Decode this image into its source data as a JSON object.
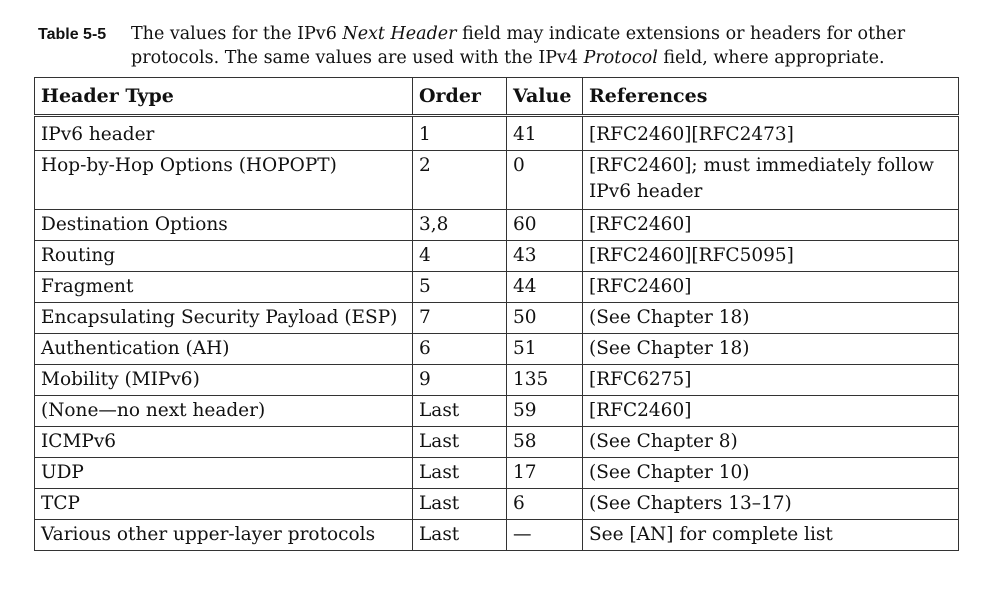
{
  "caption": {
    "label": "Table 5-5",
    "text_part1": "The values for the IPv6 ",
    "text_italic1": "Next Header",
    "text_part2": " field may indicate extensions or headers for other protocols. The same values are used with the IPv4 ",
    "text_italic2": "Protocol",
    "text_part3": " field, where appropriate."
  },
  "table": {
    "headers": [
      "Header Type",
      "Order",
      "Value",
      "References"
    ],
    "rows": [
      {
        "type": "IPv6 header",
        "order": "1",
        "value": "41",
        "refs": "[RFC2460][RFC2473]"
      },
      {
        "type": "Hop-by-Hop Options (HOPOPT)",
        "order": "2",
        "value": "0",
        "refs": "[RFC2460]; must immediately follow IPv6 header"
      },
      {
        "type": "Destination Options",
        "order": "3,8",
        "value": "60",
        "refs": "[RFC2460]"
      },
      {
        "type": "Routing",
        "order": "4",
        "value": "43",
        "refs": "[RFC2460][RFC5095]"
      },
      {
        "type": "Fragment",
        "order": "5",
        "value": "44",
        "refs": "[RFC2460]"
      },
      {
        "type": "Encapsulating Security Payload (ESP)",
        "order": "7",
        "value": "50",
        "refs": "(See Chapter 18)"
      },
      {
        "type": "Authentication (AH)",
        "order": "6",
        "value": "51",
        "refs": "(See Chapter 18)"
      },
      {
        "type": "Mobility (MIPv6)",
        "order": "9",
        "value": "135",
        "refs": "[RFC6275]"
      },
      {
        "type": "(None—no next header)",
        "order": "Last",
        "value": "59",
        "refs": "[RFC2460]"
      },
      {
        "type": "ICMPv6",
        "order": "Last",
        "value": "58",
        "refs": "(See Chapter 8)"
      },
      {
        "type": "UDP",
        "order": "Last",
        "value": "17",
        "refs": "(See Chapter 10)"
      },
      {
        "type": "TCP",
        "order": "Last",
        "value": "6",
        "refs": "(See Chapters 13–17)"
      },
      {
        "type": "Various other upper-layer protocols",
        "order": "Last",
        "value": "—",
        "refs": "See [AN] for complete list"
      }
    ]
  }
}
